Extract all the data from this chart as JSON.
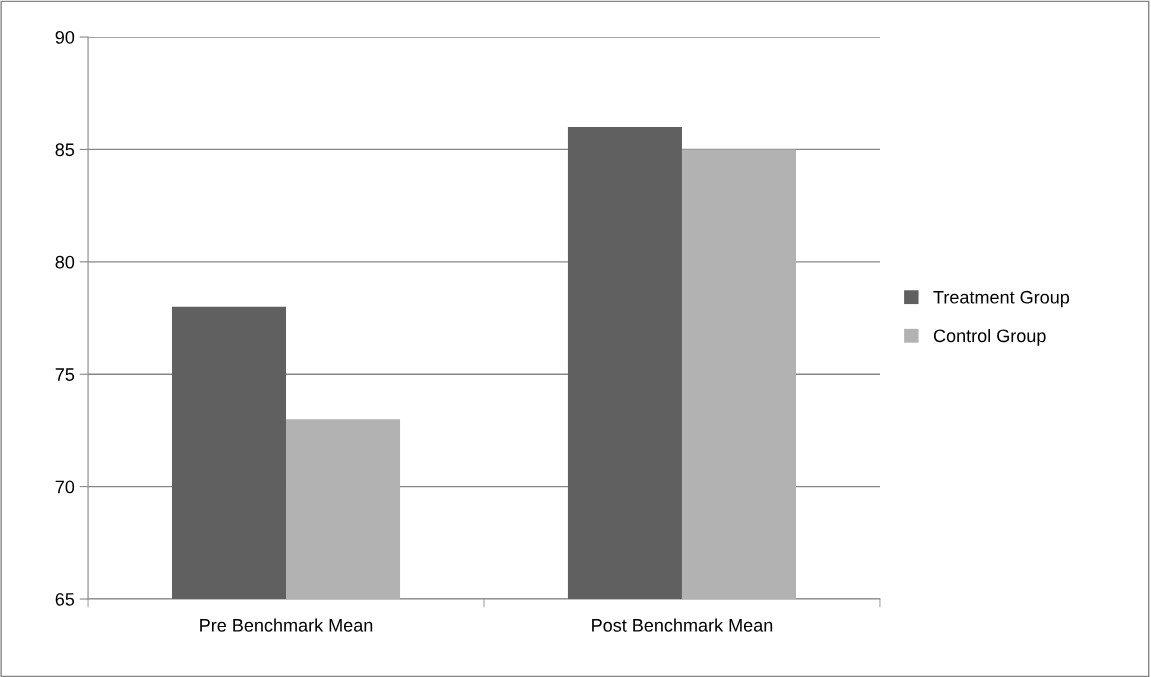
{
  "chart_data": {
    "type": "bar",
    "categories": [
      "Pre Benchmark Mean",
      "Post Benchmark Mean"
    ],
    "series": [
      {
        "name": "Treatment Group",
        "color": "#606060",
        "values": [
          78,
          86
        ]
      },
      {
        "name": "Control Group",
        "color": "#b2b2b2",
        "values": [
          73,
          85
        ]
      }
    ],
    "ylim": [
      65,
      90
    ],
    "yticks": [
      65,
      70,
      75,
      80,
      85,
      90
    ],
    "grid": "y",
    "legend": "right"
  }
}
